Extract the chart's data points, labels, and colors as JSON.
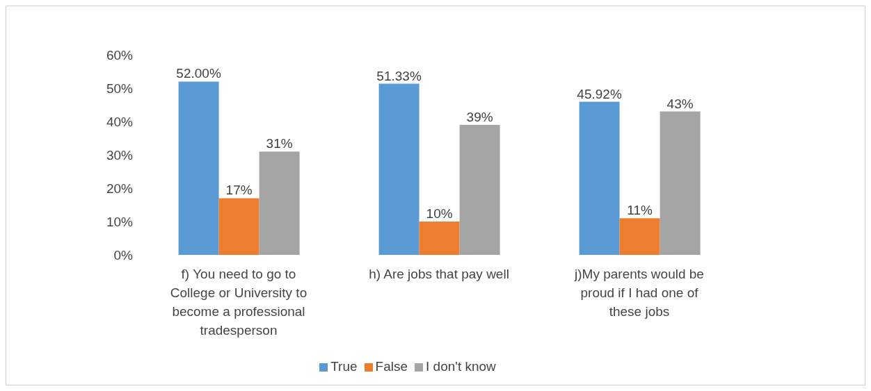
{
  "chart_data": {
    "type": "bar",
    "categories": [
      "f) You need to go to College or University to become a professional tradesperson",
      "h) Are jobs that pay well",
      "j)My parents would be proud if I had one of these jobs"
    ],
    "series": [
      {
        "name": "True",
        "color": "#5b9bd5",
        "values": [
          52.0,
          51.33,
          45.92
        ],
        "value_labels": [
          "52.00%",
          "51.33%",
          "45.92%"
        ]
      },
      {
        "name": "False",
        "color": "#ed7d31",
        "values": [
          17,
          10,
          11
        ],
        "value_labels": [
          "17%",
          "10%",
          "11%"
        ]
      },
      {
        "name": "I don't know",
        "color": "#a5a5a5",
        "values": [
          31,
          39,
          43
        ],
        "value_labels": [
          "31%",
          "39%",
          "43%"
        ]
      }
    ],
    "ylim": [
      0,
      60
    ],
    "yticks": [
      {
        "value": 0,
        "label": "0%"
      },
      {
        "value": 10,
        "label": "10%"
      },
      {
        "value": 20,
        "label": "20%"
      },
      {
        "value": 30,
        "label": "30%"
      },
      {
        "value": 40,
        "label": "40%"
      },
      {
        "value": 50,
        "label": "50%"
      },
      {
        "value": 60,
        "label": "60%"
      }
    ],
    "grid": false,
    "legend": "bottom"
  }
}
